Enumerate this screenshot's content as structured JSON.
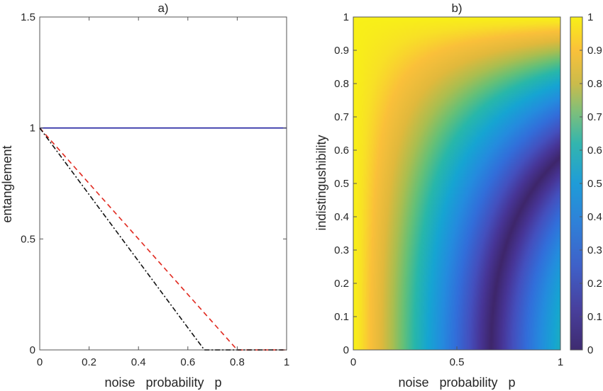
{
  "chart_data": [
    {
      "panel": "a)",
      "type": "line",
      "title": "a)",
      "xlabel": "noise   probability   p",
      "ylabel": "entanglement",
      "xlim": [
        0,
        1
      ],
      "ylim": [
        0,
        1.5
      ],
      "xticks": [
        "0",
        "0.2",
        "0.4",
        "0.6",
        "0.8",
        "1"
      ],
      "yticks": [
        "0",
        "0.5",
        "1",
        "1.5"
      ],
      "grid": false,
      "series": [
        {
          "style": "solid",
          "color": "#1f1f9e",
          "x": [
            0,
            1
          ],
          "y": [
            1,
            1
          ]
        },
        {
          "style": "dashed",
          "color": "#e0281e",
          "x": [
            0,
            0.1,
            0.2,
            0.3,
            0.4,
            0.5,
            0.6,
            0.7,
            0.8,
            0.9,
            1.0
          ],
          "y": [
            1,
            0.875,
            0.75,
            0.625,
            0.5,
            0.375,
            0.25,
            0.125,
            0,
            0,
            0
          ]
        },
        {
          "style": "dashdot",
          "color": "#111111",
          "x": [
            0,
            0.1,
            0.2,
            0.3,
            0.4,
            0.5,
            0.6,
            0.667,
            0.7,
            0.8,
            0.9,
            1.0
          ],
          "y": [
            1,
            0.85,
            0.7,
            0.55,
            0.4,
            0.25,
            0.1,
            0,
            0,
            0,
            0,
            0
          ]
        }
      ]
    },
    {
      "panel": "b)",
      "type": "heatmap",
      "title": "b)",
      "xlabel": "noise   probability   p",
      "ylabel": "indistingushibility",
      "xlim": [
        0,
        1
      ],
      "ylim": [
        0,
        1
      ],
      "xticks": [
        "0",
        "0.5",
        "1"
      ],
      "yticks": [
        "0",
        "0.1",
        "0.2",
        "0.3",
        "0.4",
        "0.5",
        "0.6",
        "0.7",
        "0.8",
        "0.9",
        "1"
      ],
      "colorbar": {
        "range": [
          0,
          1
        ],
        "ticks": [
          "0",
          "0.1",
          "0.2",
          "0.3",
          "0.4",
          "0.5",
          "0.6",
          "0.7",
          "0.8",
          "0.9",
          "1"
        ],
        "colormap": "parula"
      }
    }
  ]
}
